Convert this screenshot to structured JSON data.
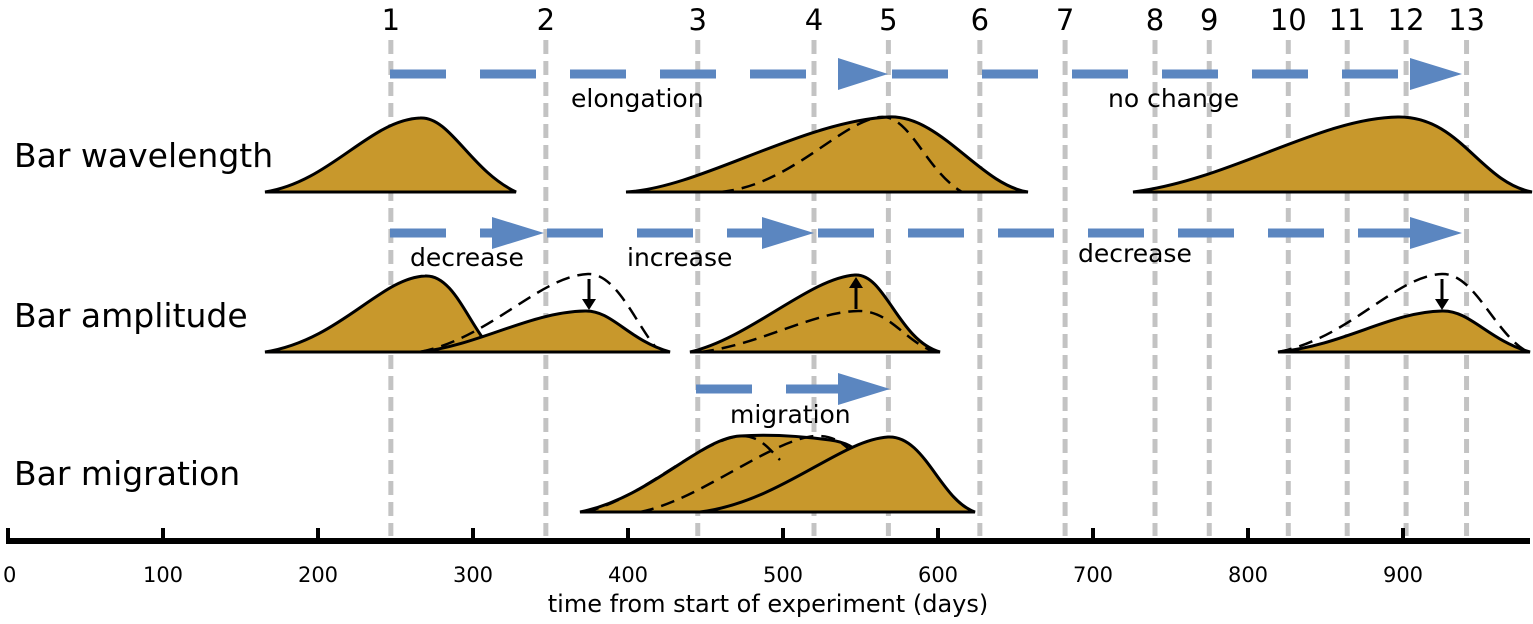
{
  "rows": {
    "wavelength": "Bar wavelength",
    "amplitude": "Bar amplitude",
    "migration": "Bar migration"
  },
  "phases": {
    "elongation": "elongation",
    "no_change": "no change",
    "decrease_1": "decrease",
    "increase": "increase",
    "decrease_2": "decrease",
    "migration": "migration"
  },
  "markers": [
    {
      "label": "1",
      "day": 247
    },
    {
      "label": "2",
      "day": 347
    },
    {
      "label": "3",
      "day": 445
    },
    {
      "label": "4",
      "day": 520
    },
    {
      "label": "5",
      "day": 568
    },
    {
      "label": "6",
      "day": 627
    },
    {
      "label": "7",
      "day": 682
    },
    {
      "label": "8",
      "day": 740
    },
    {
      "label": "9",
      "day": 775
    },
    {
      "label": "10",
      "day": 826
    },
    {
      "label": "11",
      "day": 864
    },
    {
      "label": "12",
      "day": 902
    },
    {
      "label": "13",
      "day": 941
    }
  ],
  "axis": {
    "title": "time from start of experiment (days)",
    "ticks": [
      "0",
      "100",
      "200",
      "300",
      "400",
      "500",
      "600",
      "700",
      "800",
      "900"
    ],
    "range": [
      0,
      985
    ]
  },
  "colors": {
    "bar_fill": "#c8982c",
    "arrow": "#5b86c0",
    "marker_line": "#c3c3c3"
  }
}
